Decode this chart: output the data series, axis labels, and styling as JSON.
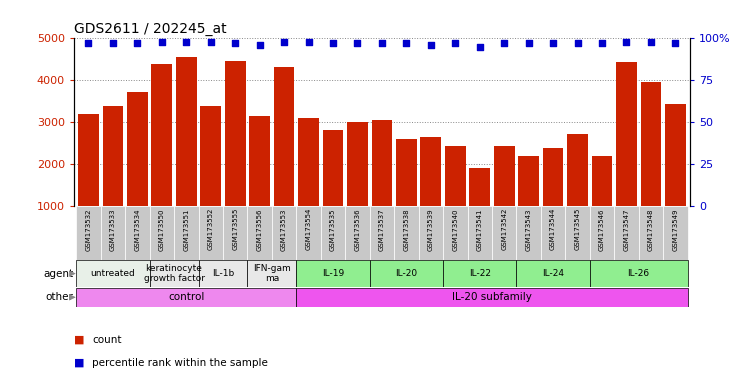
{
  "title": "GDS2611 / 202245_at",
  "samples": [
    "GSM173532",
    "GSM173533",
    "GSM173534",
    "GSM173550",
    "GSM173551",
    "GSM173552",
    "GSM173555",
    "GSM173556",
    "GSM173553",
    "GSM173554",
    "GSM173535",
    "GSM173536",
    "GSM173537",
    "GSM173538",
    "GSM173539",
    "GSM173540",
    "GSM173541",
    "GSM173542",
    "GSM173543",
    "GSM173544",
    "GSM173545",
    "GSM173546",
    "GSM173547",
    "GSM173548",
    "GSM173549"
  ],
  "counts": [
    3200,
    3400,
    3720,
    4380,
    4550,
    3380,
    4450,
    3150,
    4330,
    3100,
    2810,
    3020,
    3050,
    2600,
    2650,
    2440,
    1920,
    2430,
    2200,
    2380,
    2720,
    2190,
    4440,
    3960,
    3440
  ],
  "percentile_ranks": [
    97,
    97,
    97,
    98,
    98,
    98,
    97,
    96,
    98,
    98,
    97,
    97,
    97,
    97,
    96,
    97,
    95,
    97,
    97,
    97,
    97,
    97,
    98,
    98,
    97
  ],
  "bar_color": "#CC2200",
  "dot_color": "#0000CC",
  "agent_groups": [
    {
      "label": "untreated",
      "start": 0,
      "end": 2,
      "color": "#E8F0E8"
    },
    {
      "label": "keratinocyte\ngrowth factor",
      "start": 3,
      "end": 4,
      "color": "#E8E8E8"
    },
    {
      "label": "IL-1b",
      "start": 5,
      "end": 6,
      "color": "#E8E8E8"
    },
    {
      "label": "IFN-gam\nma",
      "start": 7,
      "end": 8,
      "color": "#E8E8E8"
    },
    {
      "label": "IL-19",
      "start": 9,
      "end": 11,
      "color": "#90EE90"
    },
    {
      "label": "IL-20",
      "start": 12,
      "end": 14,
      "color": "#90EE90"
    },
    {
      "label": "IL-22",
      "start": 15,
      "end": 17,
      "color": "#90EE90"
    },
    {
      "label": "IL-24",
      "start": 18,
      "end": 20,
      "color": "#90EE90"
    },
    {
      "label": "IL-26",
      "start": 21,
      "end": 24,
      "color": "#90EE90"
    }
  ],
  "other_groups": [
    {
      "label": "control",
      "start": 0,
      "end": 8,
      "color": "#EE88EE"
    },
    {
      "label": "IL-20 subfamily",
      "start": 9,
      "end": 24,
      "color": "#EE55EE"
    }
  ],
  "ylim": [
    1000,
    5000
  ],
  "yticks": [
    1000,
    2000,
    3000,
    4000,
    5000
  ],
  "right_yticks": [
    0,
    25,
    50,
    75,
    100
  ],
  "right_ylabels": [
    "0",
    "25",
    "50",
    "75",
    "100%"
  ],
  "legend_count_label": "count",
  "legend_pct_label": "percentile rank within the sample",
  "background_color": "#FFFFFF",
  "xlabel_bg_color": "#C8C8C8"
}
